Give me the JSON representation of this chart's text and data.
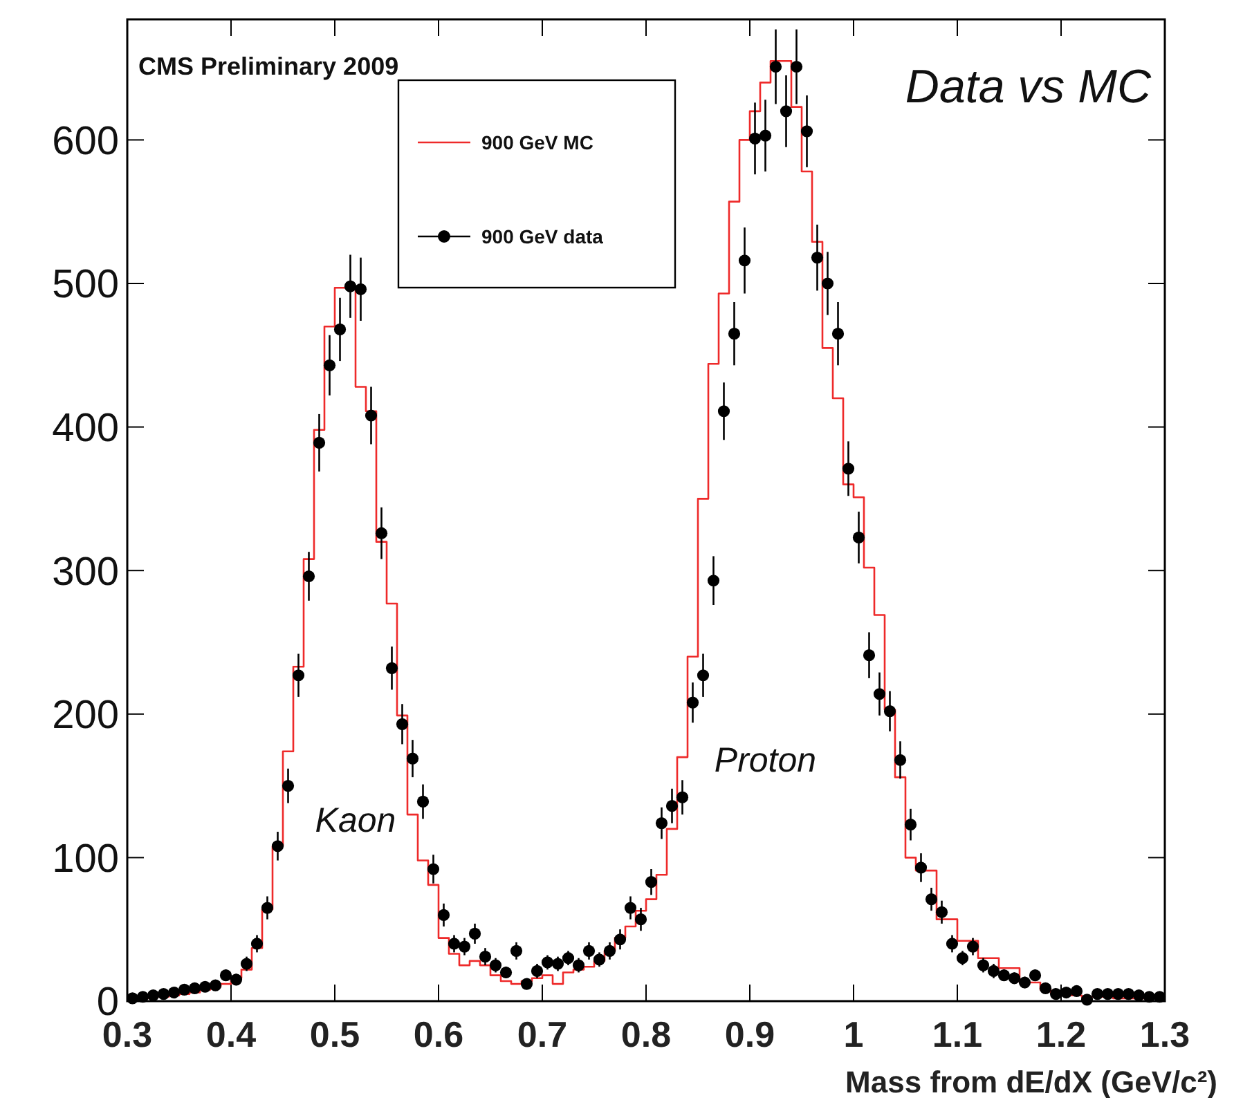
{
  "chart_data": {
    "type": "histogram",
    "xlabel": "Mass from dE/dX (GeV/c²)",
    "annotations": [
      "CMS Preliminary 2009",
      "Data vs MC",
      "Kaon",
      "Proton"
    ],
    "bins": [
      0.3,
      0.31,
      0.32,
      0.33,
      0.34,
      0.35,
      0.36,
      0.37,
      0.38,
      0.39,
      0.4,
      0.41,
      0.42,
      0.43,
      0.44,
      0.45,
      0.46,
      0.47,
      0.48,
      0.49,
      0.5,
      0.51,
      0.52,
      0.53,
      0.54,
      0.55,
      0.56,
      0.57,
      0.58,
      0.59,
      0.6,
      0.61,
      0.62,
      0.63,
      0.64,
      0.65,
      0.66,
      0.67,
      0.68,
      0.69,
      0.7,
      0.71,
      0.72,
      0.73,
      0.74,
      0.75,
      0.76,
      0.77,
      0.78,
      0.79,
      0.8,
      0.81,
      0.82,
      0.83,
      0.84,
      0.85,
      0.86,
      0.87,
      0.88,
      0.89,
      0.9,
      0.91,
      0.92,
      0.93,
      0.94,
      0.95,
      0.96,
      0.97,
      0.98,
      0.99,
      1.0,
      1.01,
      1.02,
      1.03,
      1.04,
      1.05,
      1.06,
      1.07,
      1.08,
      1.09,
      1.1,
      1.11,
      1.12,
      1.13,
      1.14,
      1.15,
      1.16,
      1.17,
      1.18,
      1.19,
      1.2,
      1.21,
      1.22,
      1.23,
      1.24,
      1.25,
      1.26,
      1.27,
      1.28,
      1.29,
      1.3
    ],
    "series": [
      {
        "name": "900 GeV MC",
        "color": "#ee2a2a",
        "values": [
          2,
          2,
          3,
          3,
          4,
          5,
          6,
          8,
          10,
          12,
          16,
          22,
          37,
          64,
          108,
          174,
          233,
          308,
          398,
          470,
          497,
          497,
          428,
          411,
          320,
          277,
          199,
          130,
          98,
          81,
          44,
          33,
          25,
          28,
          25,
          18,
          14,
          12,
          14,
          16,
          18,
          12,
          20,
          22,
          24,
          28,
          35,
          44,
          52,
          63,
          71,
          88,
          120,
          170,
          240,
          350,
          444,
          493,
          557,
          600,
          620,
          640,
          655,
          655,
          623,
          578,
          529,
          455,
          420,
          360,
          351,
          302,
          269,
          203,
          156,
          100,
          91,
          91,
          57,
          57,
          42,
          42,
          30,
          30,
          23,
          23,
          13,
          13,
          8,
          6,
          5,
          4,
          3,
          3,
          3,
          2,
          2,
          2,
          2,
          2
        ]
      },
      {
        "name": "900 GeV data",
        "type": "scatter",
        "color": "#000000",
        "marker": "circle",
        "x": [
          0.305,
          0.315,
          0.325,
          0.335,
          0.345,
          0.355,
          0.365,
          0.375,
          0.385,
          0.395,
          0.405,
          0.415,
          0.425,
          0.435,
          0.445,
          0.455,
          0.465,
          0.475,
          0.485,
          0.495,
          0.505,
          0.515,
          0.525,
          0.535,
          0.545,
          0.555,
          0.565,
          0.575,
          0.585,
          0.595,
          0.605,
          0.615,
          0.625,
          0.635,
          0.645,
          0.655,
          0.665,
          0.675,
          0.685,
          0.695,
          0.705,
          0.715,
          0.725,
          0.735,
          0.745,
          0.755,
          0.765,
          0.775,
          0.785,
          0.795,
          0.805,
          0.815,
          0.825,
          0.835,
          0.845,
          0.855,
          0.865,
          0.875,
          0.885,
          0.895,
          0.905,
          0.915,
          0.925,
          0.935,
          0.945,
          0.955,
          0.965,
          0.975,
          0.985,
          0.995,
          1.005,
          1.015,
          1.025,
          1.035,
          1.045,
          1.055,
          1.065,
          1.075,
          1.085,
          1.095,
          1.105,
          1.115,
          1.125,
          1.135,
          1.145,
          1.155,
          1.165,
          1.175,
          1.185,
          1.195,
          1.205,
          1.215,
          1.225,
          1.235,
          1.245,
          1.255,
          1.265,
          1.275,
          1.285,
          1.295
        ],
        "values": [
          2,
          3,
          4,
          5,
          6,
          8,
          9,
          10,
          11,
          18,
          15,
          26,
          40,
          65,
          108,
          150,
          227,
          296,
          389,
          443,
          468,
          498,
          496,
          408,
          326,
          232,
          193,
          169,
          139,
          92,
          60,
          40,
          38,
          47,
          31,
          25,
          20,
          35,
          12,
          21,
          27,
          26,
          30,
          25,
          35,
          29,
          35,
          43,
          65,
          57,
          83,
          124,
          136,
          142,
          208,
          227,
          293,
          411,
          465,
          516,
          601,
          603,
          651,
          620,
          651,
          606,
          518,
          500,
          465,
          371,
          323,
          241,
          214,
          202,
          168,
          123,
          93,
          71,
          62,
          40,
          30,
          38,
          25,
          21,
          18,
          16,
          13,
          18,
          9,
          5,
          6,
          7,
          1,
          5,
          5,
          5,
          5,
          4,
          3,
          3
        ],
        "errors": [
          1,
          2,
          2,
          2,
          2,
          3,
          3,
          3,
          3,
          4,
          4,
          5,
          6,
          8,
          10,
          12,
          15,
          17,
          20,
          21,
          22,
          22,
          22,
          20,
          18,
          15,
          14,
          13,
          12,
          10,
          8,
          6,
          6,
          7,
          6,
          5,
          4,
          6,
          3,
          5,
          5,
          5,
          5,
          5,
          6,
          5,
          6,
          7,
          8,
          8,
          9,
          11,
          12,
          12,
          14,
          15,
          17,
          20,
          22,
          23,
          25,
          25,
          26,
          25,
          26,
          25,
          23,
          22,
          22,
          19,
          18,
          16,
          15,
          14,
          13,
          11,
          10,
          8,
          8,
          6,
          5,
          6,
          5,
          5,
          4,
          4,
          4,
          4,
          3,
          2,
          2,
          3,
          1,
          2,
          2,
          2,
          2,
          2,
          2,
          2
        ]
      }
    ],
    "xlim": [
      0.3,
      1.3
    ],
    "xticks": [
      0.3,
      0.4,
      0.5,
      0.6,
      0.7,
      0.8,
      0.9,
      1,
      1.1,
      1.2,
      1.3
    ],
    "ylim": [
      0,
      684
    ],
    "yticks": [
      0,
      100,
      200,
      300,
      400,
      500,
      600
    ],
    "legend": "top left"
  }
}
